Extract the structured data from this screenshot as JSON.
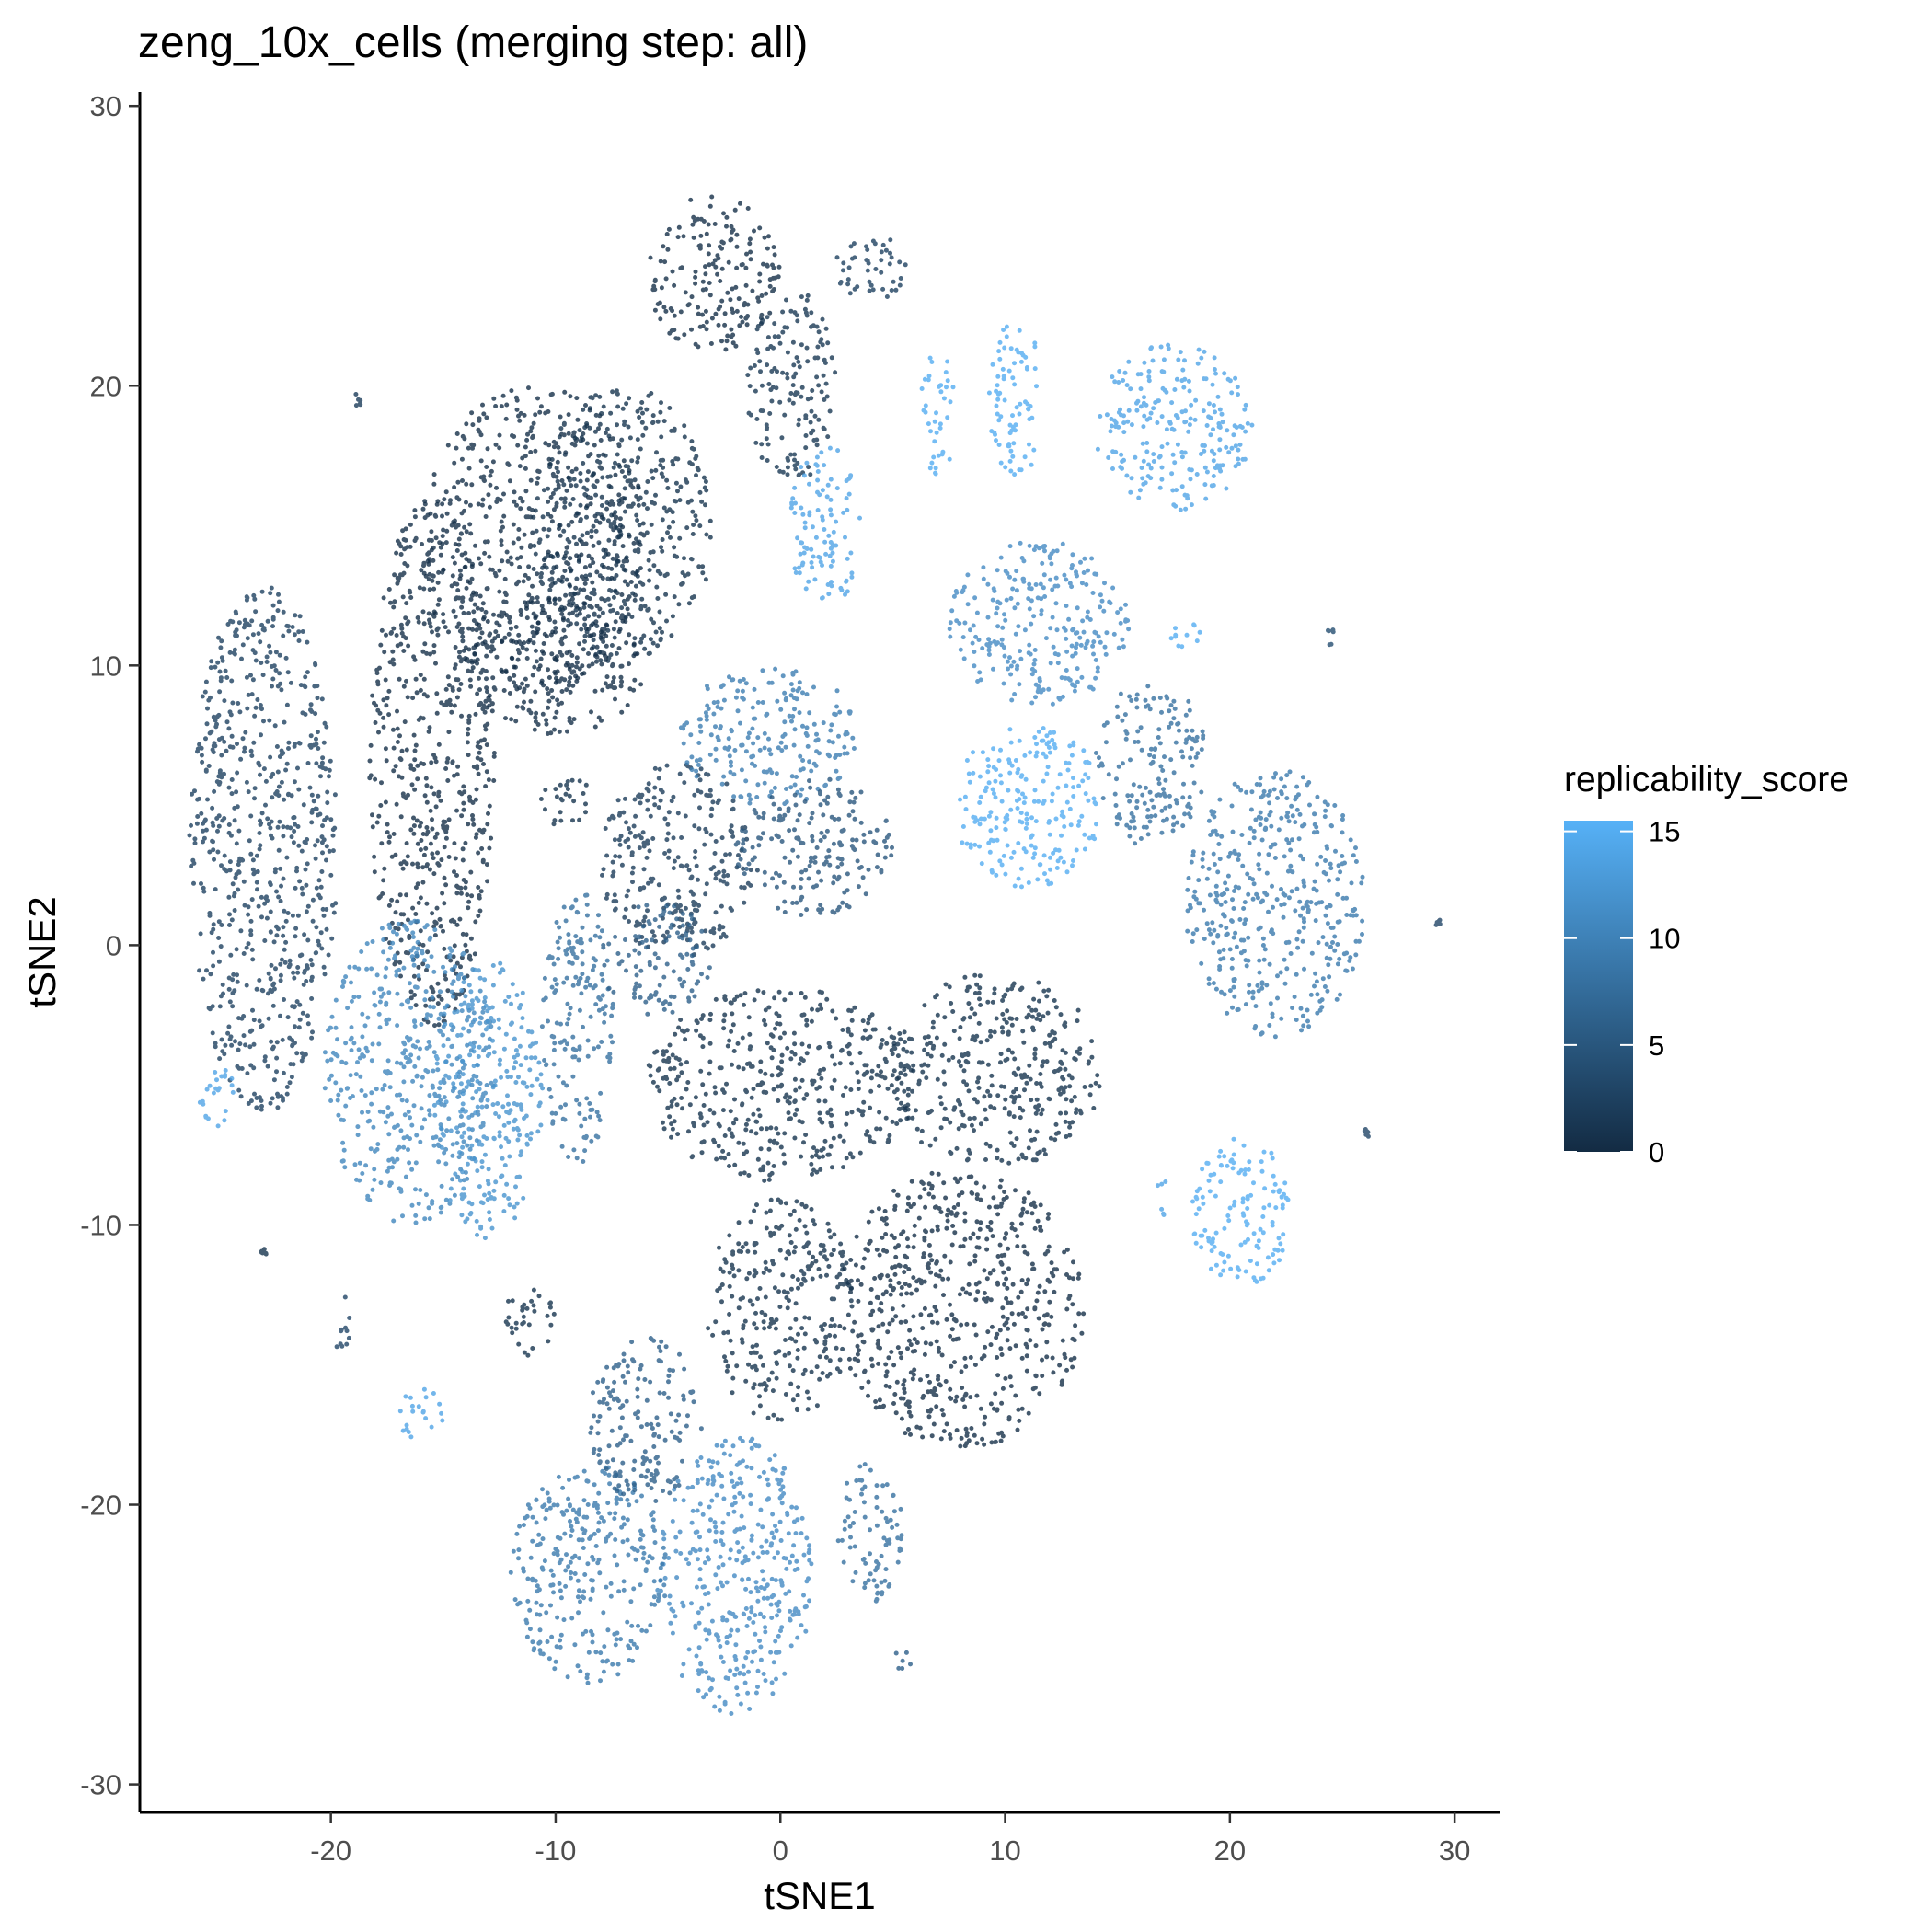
{
  "chart_data": {
    "type": "scatter",
    "title": "zeng_10x_cells (merging step: all)",
    "xlabel": "tSNE1",
    "ylabel": "tSNE2",
    "xlim": [
      -28.5,
      32
    ],
    "ylim": [
      -31,
      30.5
    ],
    "x_ticks": [
      -20,
      -10,
      0,
      10,
      20,
      30
    ],
    "y_ticks": [
      -30,
      -20,
      -10,
      0,
      10,
      20,
      30
    ],
    "x_tick_labels": [
      "-20",
      "-10",
      "0",
      "10",
      "20",
      "30"
    ],
    "y_tick_labels": [
      "-30",
      "-20",
      "-10",
      "0",
      "10",
      "20",
      "30"
    ],
    "grid": false,
    "legend": {
      "title": "replicability_score",
      "placement": "right",
      "range": [
        0,
        15.5
      ],
      "breaks": [
        0,
        5,
        10,
        15
      ],
      "labels": [
        "0",
        "5",
        "10",
        "15"
      ],
      "color_low": "#132b43",
      "color_high": "#56b1f7"
    },
    "clusters": [
      {
        "x": -23,
        "y": 3.5,
        "rx": 3.3,
        "ry": 9.5,
        "score": 2.5
      },
      {
        "x": -15.5,
        "y": 6.5,
        "rx": 2.8,
        "ry": 9.5,
        "score": 0.5
      },
      {
        "x": -11,
        "y": 14.5,
        "rx": 5,
        "ry": 5.5,
        "score": 0.5
      },
      {
        "x": -7,
        "y": 15,
        "rx": 4,
        "ry": 5,
        "score": 1
      },
      {
        "x": -10,
        "y": 10,
        "rx": 4,
        "ry": 2.5,
        "score": 0.5
      },
      {
        "x": -9.5,
        "y": 5.2,
        "rx": 1.2,
        "ry": 1.0,
        "score": 1
      },
      {
        "x": -18.7,
        "y": 19.5,
        "rx": 0.4,
        "ry": 0.25,
        "score": 2
      },
      {
        "x": -16.5,
        "y": -4.5,
        "rx": 3.8,
        "ry": 5.5,
        "score": 10.5
      },
      {
        "x": -13,
        "y": -5.5,
        "rx": 2.5,
        "ry": 5,
        "score": 12
      },
      {
        "x": -25,
        "y": -5.3,
        "rx": 0.9,
        "ry": 1.2,
        "score": 14
      },
      {
        "x": -16,
        "y": -16.8,
        "rx": 1.0,
        "ry": 1.0,
        "score": 14
      },
      {
        "x": -19.5,
        "y": -13.5,
        "rx": 0.4,
        "ry": 1.2,
        "score": 3
      },
      {
        "x": -11.2,
        "y": -13.5,
        "rx": 1.2,
        "ry": 1.3,
        "score": 1
      },
      {
        "x": -9,
        "y": -3,
        "rx": 1.6,
        "ry": 5,
        "score": 8
      },
      {
        "x": -4.5,
        "y": 3,
        "rx": 3.5,
        "ry": 3.5,
        "score": 2
      },
      {
        "x": -0.5,
        "y": 7.5,
        "rx": 4,
        "ry": 2.5,
        "score": 9.5
      },
      {
        "x": 1.5,
        "y": 3.5,
        "rx": 3.5,
        "ry": 2.5,
        "score": 5
      },
      {
        "x": -5.5,
        "y": -0.5,
        "rx": 2.5,
        "ry": 2,
        "score": 6
      },
      {
        "x": -3,
        "y": 24,
        "rx": 3,
        "ry": 2.8,
        "score": 0.5
      },
      {
        "x": 0.5,
        "y": 20,
        "rx": 2,
        "ry": 3.5,
        "score": 1.5
      },
      {
        "x": 4,
        "y": 24.3,
        "rx": 1.6,
        "ry": 1.3,
        "score": 2.5
      },
      {
        "x": 2,
        "y": 15,
        "rx": 1.6,
        "ry": 3,
        "score": 14
      },
      {
        "x": 7,
        "y": 19,
        "rx": 0.8,
        "ry": 2.2,
        "score": 15
      },
      {
        "x": 10.5,
        "y": 19.5,
        "rx": 1.3,
        "ry": 2.8,
        "score": 15
      },
      {
        "x": 17.5,
        "y": 18.5,
        "rx": 3.5,
        "ry": 3,
        "score": 14
      },
      {
        "x": 11.5,
        "y": 11.5,
        "rx": 4,
        "ry": 3,
        "score": 11
      },
      {
        "x": 11,
        "y": 5,
        "rx": 3.3,
        "ry": 3,
        "score": 15
      },
      {
        "x": 16.5,
        "y": 6.5,
        "rx": 2.5,
        "ry": 3,
        "score": 8
      },
      {
        "x": 18,
        "y": 11,
        "rx": 0.8,
        "ry": 0.6,
        "score": 15
      },
      {
        "x": 22,
        "y": 1.5,
        "rx": 4,
        "ry": 4.8,
        "score": 9
      },
      {
        "x": 20.5,
        "y": -9.5,
        "rx": 2.2,
        "ry": 2.8,
        "score": 15
      },
      {
        "x": 17,
        "y": -9,
        "rx": 0.3,
        "ry": 0.7,
        "score": 14
      },
      {
        "x": 0,
        "y": -5,
        "rx": 6,
        "ry": 3.5,
        "score": 1
      },
      {
        "x": 9.5,
        "y": -4.5,
        "rx": 4.8,
        "ry": 3.5,
        "score": 1
      },
      {
        "x": 8,
        "y": -13,
        "rx": 5.5,
        "ry": 5,
        "score": 0.5
      },
      {
        "x": 0,
        "y": -13,
        "rx": 3.3,
        "ry": 4,
        "score": 1
      },
      {
        "x": -2,
        "y": -22.5,
        "rx": 3.5,
        "ry": 5,
        "score": 11
      },
      {
        "x": -8.5,
        "y": -22.5,
        "rx": 3.5,
        "ry": 4,
        "score": 9
      },
      {
        "x": -6,
        "y": -17,
        "rx": 2.5,
        "ry": 3,
        "score": 6
      },
      {
        "x": 4,
        "y": -21,
        "rx": 1.5,
        "ry": 2.5,
        "score": 8
      },
      {
        "x": 5.5,
        "y": -25.5,
        "rx": 0.6,
        "ry": 0.4,
        "score": 6
      },
      {
        "x": 24.5,
        "y": 11,
        "rx": 0.3,
        "ry": 0.3,
        "score": 4
      },
      {
        "x": 29.3,
        "y": 0.8,
        "rx": 0.15,
        "ry": 0.15,
        "score": 3
      },
      {
        "x": 26.1,
        "y": -6.7,
        "rx": 0.15,
        "ry": 0.15,
        "score": 3
      },
      {
        "x": -23,
        "y": -11,
        "rx": 0.15,
        "ry": 0.15,
        "score": 1
      }
    ]
  }
}
